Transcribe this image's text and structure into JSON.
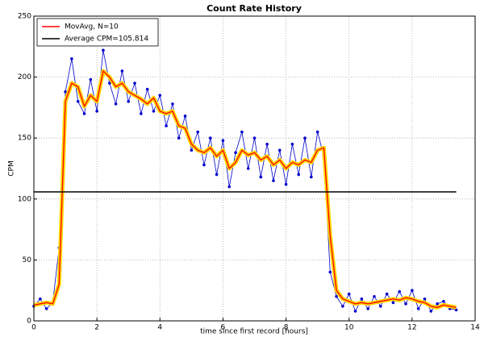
{
  "chart_data": {
    "type": "line",
    "title": "Count Rate History",
    "xlabel": "time since first record [hours]",
    "ylabel": "CPM",
    "xlim": [
      0,
      14
    ],
    "xticks": [
      0,
      2,
      4,
      6,
      8,
      10,
      12,
      14
    ],
    "ylim": [
      0,
      250
    ],
    "yticks": [
      0,
      50,
      100,
      150,
      200,
      250
    ],
    "grid": true,
    "legend": "upper left",
    "x": [
      0,
      0.2,
      0.4,
      0.6,
      0.8,
      1.0,
      1.2,
      1.4,
      1.6,
      1.8,
      2.0,
      2.2,
      2.4,
      2.6,
      2.8,
      3.0,
      3.2,
      3.4,
      3.6,
      3.8,
      4.0,
      4.2,
      4.4,
      4.6,
      4.8,
      5.0,
      5.2,
      5.4,
      5.6,
      5.8,
      6.0,
      6.2,
      6.4,
      6.6,
      6.8,
      7.0,
      7.2,
      7.4,
      7.6,
      7.8,
      8.0,
      8.2,
      8.4,
      8.6,
      8.8,
      9.0,
      9.2,
      9.4,
      9.6,
      9.8,
      10.0,
      10.2,
      10.4,
      10.6,
      10.8,
      11.0,
      11.2,
      11.4,
      11.6,
      11.8,
      12.0,
      12.2,
      12.4,
      12.6,
      12.8,
      13.0,
      13.2,
      13.4
    ],
    "raw": {
      "color": "#0000cc",
      "values": [
        12,
        18,
        10,
        15,
        60,
        188,
        215,
        180,
        170,
        198,
        172,
        222,
        195,
        178,
        205,
        180,
        195,
        170,
        190,
        172,
        185,
        160,
        178,
        150,
        168,
        140,
        155,
        128,
        150,
        120,
        148,
        110,
        138,
        155,
        125,
        150,
        118,
        145,
        115,
        140,
        112,
        145,
        120,
        150,
        118,
        155,
        135,
        40,
        20,
        12,
        22,
        8,
        18,
        10,
        20,
        12,
        22,
        15,
        24,
        14,
        25,
        10,
        18,
        8,
        14,
        16,
        10,
        9
      ]
    },
    "series": [
      {
        "name": "MovAvg, N=10",
        "color": "#ff0000",
        "halo_color": "#ffd700",
        "values": [
          13,
          14,
          15,
          14,
          30,
          180,
          195,
          192,
          176,
          185,
          180,
          205,
          200,
          192,
          195,
          188,
          185,
          182,
          178,
          183,
          172,
          170,
          172,
          160,
          158,
          145,
          140,
          138,
          142,
          135,
          140,
          125,
          130,
          140,
          136,
          138,
          132,
          135,
          128,
          132,
          125,
          130,
          128,
          132,
          130,
          140,
          142,
          70,
          25,
          18,
          16,
          14,
          15,
          14,
          15,
          16,
          17,
          18,
          17,
          19,
          18,
          16,
          15,
          12,
          11,
          13,
          12,
          11
        ]
      }
    ],
    "hline": {
      "value": 105.814,
      "label": "Average CPM=105.814",
      "color": "#000000"
    }
  }
}
